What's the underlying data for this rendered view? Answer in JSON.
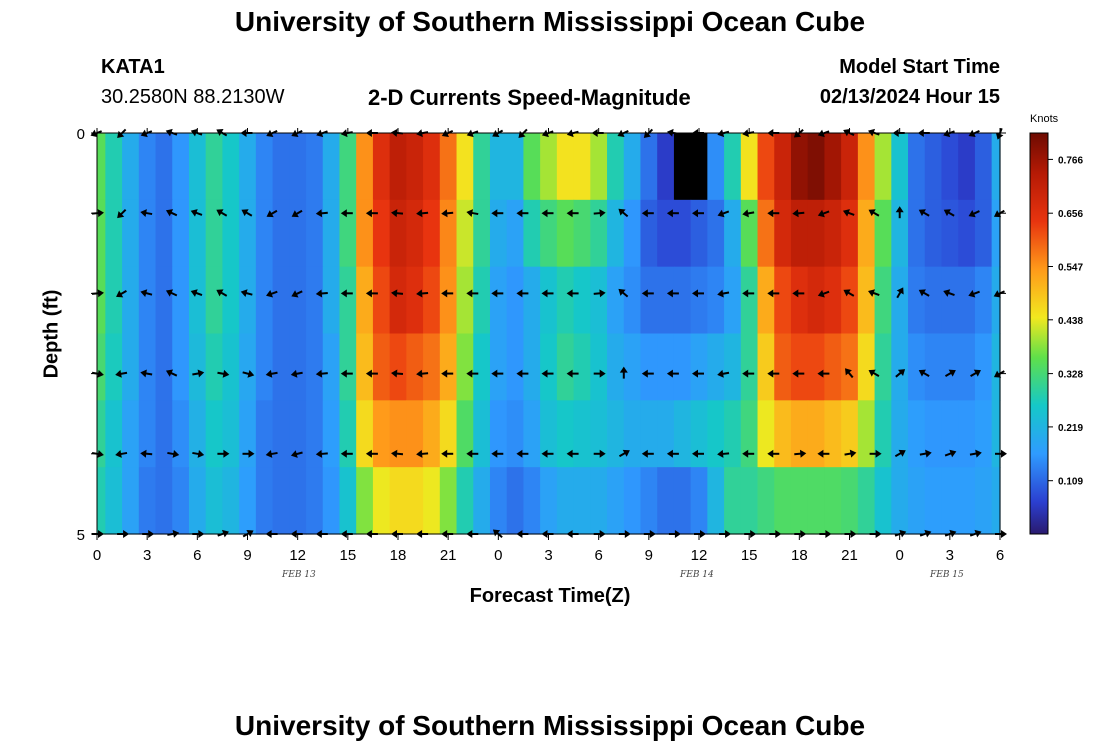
{
  "page": {
    "title_top": "University of Southern Mississippi Ocean Cube",
    "title_bottom": "University of Southern Mississippi Ocean Cube",
    "station_id": "KATA1",
    "station_coords": "30.2580N  88.2130W",
    "model_label": "Model Start Time",
    "model_time": "02/13/2024 Hour 15"
  },
  "chart_data": {
    "type": "heatmap",
    "title": "2-D Currents Speed-Magnitude",
    "xlabel": "Forecast Time(Z)",
    "ylabel": "Depth (ft)",
    "ylim": [
      0,
      5
    ],
    "x_tick_labels": [
      "0",
      "3",
      "6",
      "9",
      "12",
      "15",
      "18",
      "21",
      "0",
      "3",
      "6",
      "9",
      "12",
      "15",
      "18",
      "21",
      "0",
      "3",
      "6"
    ],
    "y_tick_labels": [
      "0",
      "5"
    ],
    "date_labels": [
      {
        "label": "FEB 13",
        "x_hour": 12
      },
      {
        "label": "FEB 14",
        "x_hour": 36
      },
      {
        "label": "FEB 15",
        "x_hour": 51
      }
    ],
    "colorbar": {
      "title": "Knots",
      "min": 0.0,
      "max": 0.82,
      "tick_values": [
        0.766,
        0.656,
        0.547,
        0.438,
        0.328,
        0.219,
        0.109
      ],
      "tick_labels": [
        "0.766",
        "0.656",
        "0.547",
        "0.438",
        "0.328",
        "0.219",
        "0.109"
      ]
    },
    "depth_levels": 5,
    "time_hours": [
      0,
      1,
      2,
      3,
      4,
      5,
      6,
      7,
      8,
      9,
      10,
      11,
      12,
      13,
      14,
      15,
      16,
      17,
      18,
      19,
      20,
      21,
      22,
      23,
      24,
      25,
      26,
      27,
      28,
      29,
      30,
      31,
      32,
      33,
      34,
      35,
      36,
      37,
      38,
      39,
      40,
      41,
      42,
      43,
      44,
      45,
      46,
      47,
      48,
      49,
      50,
      51,
      52,
      53,
      54
    ],
    "speed_knots": [
      [
        0.35,
        0.28,
        0.2,
        0.14,
        0.12,
        0.16,
        0.24,
        0.3,
        0.26,
        0.2,
        0.14,
        0.12,
        0.12,
        0.13,
        0.2,
        0.32,
        0.55,
        0.66,
        0.72,
        0.7,
        0.66,
        0.58,
        0.45,
        0.3,
        0.22,
        0.22,
        0.35,
        0.4,
        0.45,
        0.45,
        0.4,
        0.28,
        0.2,
        0.12,
        0.06,
        0.03,
        0.02,
        0.15,
        0.28,
        0.45,
        0.62,
        0.7,
        0.78,
        0.8,
        0.76,
        0.7,
        0.55,
        0.4,
        0.25,
        0.12,
        0.1,
        0.08,
        0.06,
        0.1,
        0.2
      ],
      [
        0.35,
        0.28,
        0.2,
        0.14,
        0.12,
        0.16,
        0.24,
        0.3,
        0.26,
        0.2,
        0.14,
        0.12,
        0.12,
        0.13,
        0.2,
        0.32,
        0.55,
        0.64,
        0.7,
        0.68,
        0.64,
        0.56,
        0.42,
        0.3,
        0.2,
        0.18,
        0.28,
        0.32,
        0.35,
        0.33,
        0.3,
        0.22,
        0.16,
        0.1,
        0.08,
        0.08,
        0.1,
        0.12,
        0.2,
        0.35,
        0.58,
        0.68,
        0.72,
        0.72,
        0.7,
        0.66,
        0.52,
        0.35,
        0.22,
        0.12,
        0.1,
        0.09,
        0.08,
        0.1,
        0.18
      ],
      [
        0.35,
        0.28,
        0.2,
        0.14,
        0.12,
        0.16,
        0.24,
        0.3,
        0.26,
        0.2,
        0.14,
        0.12,
        0.12,
        0.13,
        0.2,
        0.3,
        0.52,
        0.62,
        0.68,
        0.66,
        0.62,
        0.55,
        0.4,
        0.28,
        0.18,
        0.16,
        0.2,
        0.25,
        0.28,
        0.26,
        0.24,
        0.18,
        0.15,
        0.12,
        0.12,
        0.12,
        0.13,
        0.14,
        0.18,
        0.3,
        0.52,
        0.62,
        0.66,
        0.68,
        0.66,
        0.62,
        0.5,
        0.32,
        0.2,
        0.13,
        0.12,
        0.12,
        0.12,
        0.14,
        0.2
      ],
      [
        0.33,
        0.27,
        0.2,
        0.14,
        0.12,
        0.16,
        0.23,
        0.28,
        0.25,
        0.19,
        0.14,
        0.12,
        0.12,
        0.13,
        0.18,
        0.3,
        0.5,
        0.6,
        0.62,
        0.6,
        0.58,
        0.52,
        0.38,
        0.26,
        0.18,
        0.16,
        0.2,
        0.26,
        0.3,
        0.28,
        0.25,
        0.2,
        0.18,
        0.16,
        0.16,
        0.16,
        0.18,
        0.2,
        0.22,
        0.3,
        0.48,
        0.6,
        0.62,
        0.62,
        0.6,
        0.58,
        0.46,
        0.3,
        0.2,
        0.15,
        0.14,
        0.14,
        0.14,
        0.16,
        0.22
      ],
      [
        0.3,
        0.25,
        0.18,
        0.14,
        0.12,
        0.15,
        0.21,
        0.26,
        0.24,
        0.18,
        0.13,
        0.12,
        0.12,
        0.13,
        0.17,
        0.28,
        0.46,
        0.54,
        0.55,
        0.55,
        0.52,
        0.46,
        0.34,
        0.24,
        0.16,
        0.15,
        0.18,
        0.24,
        0.26,
        0.25,
        0.24,
        0.22,
        0.2,
        0.2,
        0.2,
        0.22,
        0.24,
        0.26,
        0.28,
        0.32,
        0.44,
        0.5,
        0.52,
        0.52,
        0.5,
        0.48,
        0.4,
        0.28,
        0.2,
        0.17,
        0.16,
        0.16,
        0.16,
        0.17,
        0.22
      ],
      [
        0.28,
        0.24,
        0.18,
        0.13,
        0.12,
        0.14,
        0.2,
        0.24,
        0.22,
        0.17,
        0.13,
        0.12,
        0.12,
        0.13,
        0.16,
        0.25,
        0.38,
        0.44,
        0.46,
        0.46,
        0.44,
        0.38,
        0.28,
        0.2,
        0.14,
        0.12,
        0.14,
        0.18,
        0.2,
        0.2,
        0.2,
        0.18,
        0.16,
        0.14,
        0.12,
        0.12,
        0.14,
        0.22,
        0.3,
        0.3,
        0.32,
        0.34,
        0.34,
        0.34,
        0.34,
        0.33,
        0.3,
        0.25,
        0.2,
        0.18,
        0.17,
        0.17,
        0.17,
        0.18,
        0.2
      ]
    ],
    "arrow_times": [
      0,
      1.5,
      3,
      4.5,
      6,
      7.5,
      9,
      10.5,
      12,
      13.5,
      15,
      16.5,
      18,
      19.5,
      21,
      22.5,
      24,
      25.5,
      27,
      28.5,
      30,
      31.5,
      33,
      34.5,
      36,
      37.5,
      39,
      40.5,
      42,
      43.5,
      45,
      46.5,
      48,
      49.5,
      51,
      52.5,
      54
    ],
    "arrow_depths": [
      0,
      1,
      2,
      3,
      4,
      5
    ],
    "arrow_directions_deg": [
      [
        202,
        225,
        202,
        160,
        160,
        150,
        180,
        205,
        205,
        200,
        190,
        180,
        175,
        190,
        205,
        200,
        210,
        225,
        200,
        195,
        180,
        205,
        225,
        170,
        180,
        195,
        190,
        180,
        220,
        200,
        155,
        160,
        180,
        180,
        200,
        205,
        250
      ],
      [
        5,
        225,
        170,
        155,
        160,
        150,
        150,
        210,
        210,
        185,
        180,
        180,
        175,
        185,
        185,
        170,
        180,
        180,
        180,
        180,
        5,
        140,
        180,
        180,
        180,
        200,
        190,
        180,
        185,
        200,
        160,
        150,
        90,
        150,
        150,
        205,
        210
      ],
      [
        5,
        210,
        165,
        155,
        160,
        150,
        165,
        200,
        205,
        185,
        180,
        180,
        175,
        185,
        180,
        180,
        180,
        180,
        180,
        180,
        5,
        140,
        180,
        180,
        180,
        190,
        180,
        180,
        180,
        200,
        150,
        160,
        60,
        150,
        160,
        200,
        205
      ],
      [
        350,
        190,
        170,
        155,
        10,
        350,
        345,
        190,
        190,
        185,
        180,
        180,
        175,
        185,
        180,
        180,
        180,
        180,
        180,
        180,
        0,
        90,
        180,
        180,
        180,
        190,
        180,
        180,
        180,
        180,
        130,
        150,
        40,
        150,
        30,
        30,
        210
      ],
      [
        350,
        190,
        175,
        350,
        350,
        0,
        0,
        190,
        195,
        185,
        180,
        180,
        175,
        185,
        180,
        180,
        180,
        180,
        180,
        180,
        0,
        30,
        180,
        180,
        180,
        185,
        180,
        180,
        5,
        180,
        10,
        0,
        30,
        10,
        20,
        10,
        0
      ],
      [
        0,
        0,
        0,
        10,
        0,
        20,
        30,
        180,
        180,
        180,
        180,
        180,
        180,
        180,
        180,
        180,
        140,
        180,
        180,
        180,
        0,
        0,
        0,
        0,
        0,
        0,
        0,
        0,
        0,
        0,
        0,
        0,
        20,
        20,
        20,
        20,
        0
      ]
    ]
  }
}
